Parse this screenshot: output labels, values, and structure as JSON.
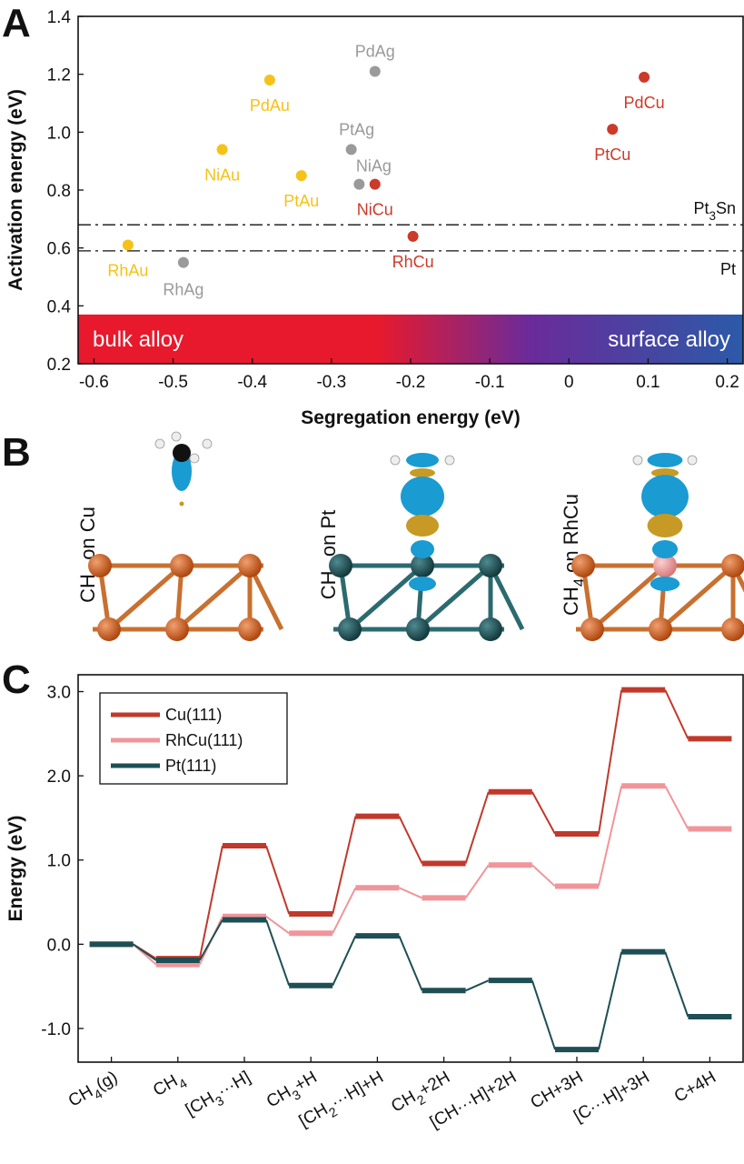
{
  "panels": {
    "a": "A",
    "b": "B",
    "c": "C"
  },
  "chart_data": [
    {
      "type": "scatter",
      "xlabel": "Segregation energy (eV)",
      "ylabel": "Activation energy (eV)",
      "xlim": [
        -0.62,
        0.22
      ],
      "ylim": [
        0.2,
        1.4
      ],
      "xticks": [
        -0.6,
        -0.5,
        -0.4,
        -0.3,
        -0.2,
        -0.1,
        0,
        0.1,
        0.2
      ],
      "xtick_labels": [
        "-0.6",
        "-0.5",
        "-0.4",
        "-0.3",
        "-0.2",
        "-0.1",
        "0",
        "0.1",
        "0.2"
      ],
      "yticks": [
        0.2,
        0.4,
        0.6,
        0.8,
        1.0,
        1.2,
        1.4
      ],
      "ytick_labels": [
        "0.2",
        "0.4",
        "0.6",
        "0.8",
        "1.0",
        "1.2",
        "1.4"
      ],
      "band": {
        "left_label": "bulk alloy",
        "right_label": "surface alloy",
        "y_range": [
          0.2,
          0.37
        ],
        "colors": [
          "#e8192c",
          "#6a2b9a",
          "#2b5aa8"
        ]
      },
      "reference_lines": [
        {
          "label_main": "Pt",
          "label_sub": "3",
          "label_tail": "Sn",
          "y": 0.68
        },
        {
          "label_main": "Pt",
          "label_sub": "",
          "label_tail": "",
          "y": 0.59
        }
      ],
      "series": [
        {
          "group": "Au",
          "color": "#f5c218",
          "points": [
            {
              "label": "PdAu",
              "x": -0.378,
              "y": 1.18
            },
            {
              "label": "NiAu",
              "x": -0.438,
              "y": 0.94
            },
            {
              "label": "PtAu",
              "x": -0.338,
              "y": 0.85
            },
            {
              "label": "RhAu",
              "x": -0.557,
              "y": 0.61
            }
          ]
        },
        {
          "group": "Ag",
          "color": "#9a9a9a",
          "points": [
            {
              "label": "PdAg",
              "x": -0.245,
              "y": 1.21
            },
            {
              "label": "PtAg",
              "x": -0.275,
              "y": 0.94
            },
            {
              "label": "NiAg",
              "x": -0.265,
              "y": 0.82
            },
            {
              "label": "RhAg",
              "x": -0.487,
              "y": 0.55
            }
          ]
        },
        {
          "group": "Cu",
          "color": "#cc3a2a",
          "points": [
            {
              "label": "PdCu",
              "x": 0.095,
              "y": 1.19
            },
            {
              "label": "PtCu",
              "x": 0.055,
              "y": 1.01
            },
            {
              "label": "NiCu",
              "x": -0.245,
              "y": 0.82
            },
            {
              "label": "RhCu",
              "x": -0.197,
              "y": 0.64
            }
          ]
        }
      ]
    },
    {
      "type": "line",
      "ylabel": "Energy (eV)",
      "ylim": [
        -1.4,
        3.2
      ],
      "yticks": [
        -1.0,
        0.0,
        1.0,
        2.0,
        3.0
      ],
      "ytick_labels": [
        "-1.0",
        "0.0",
        "1.0",
        "2.0",
        "3.0"
      ],
      "categories": [
        {
          "main": "CH",
          "sub": "4",
          "tail": "(g)"
        },
        {
          "main": "CH",
          "sub": "4",
          "tail": ""
        },
        {
          "main": "[CH",
          "sub": "3",
          "tail": "···H]"
        },
        {
          "main": "CH",
          "sub": "3",
          "tail": "+H"
        },
        {
          "main": "[CH",
          "sub": "2",
          "tail": "···H]+H"
        },
        {
          "main": "CH",
          "sub": "2",
          "tail": "+2H"
        },
        {
          "main": "[CH···H]+2H",
          "sub": "",
          "tail": ""
        },
        {
          "main": "CH+3H",
          "sub": "",
          "tail": ""
        },
        {
          "main": "[C···H]+3H",
          "sub": "",
          "tail": ""
        },
        {
          "main": "C+4H",
          "sub": "",
          "tail": ""
        }
      ],
      "series": [
        {
          "name": "Cu(111)",
          "color": "#c0392b",
          "values": [
            0.0,
            -0.17,
            1.17,
            0.36,
            1.52,
            0.96,
            1.81,
            1.31,
            3.02,
            2.44
          ]
        },
        {
          "name": "RhCu(111)",
          "color": "#f0959a",
          "values": [
            0.0,
            -0.24,
            0.33,
            0.13,
            0.67,
            0.55,
            0.94,
            0.69,
            1.88,
            1.37
          ]
        },
        {
          "name": "Pt(111)",
          "color": "#1d4f54",
          "values": [
            0.0,
            -0.19,
            0.29,
            -0.49,
            0.1,
            -0.55,
            -0.43,
            -1.25,
            -0.09,
            -0.86
          ]
        }
      ]
    }
  ],
  "panel_b": {
    "molecule": {
      "main": "CH",
      "sub": "4"
    },
    "tiles": [
      {
        "suffix": " on Cu",
        "surface": "#c85d22",
        "bond": "#c87030"
      },
      {
        "suffix": " on Pt",
        "surface": "#1f4a4f",
        "bond": "#2b6a70"
      },
      {
        "suffix": " on RhCu",
        "surface": "#c85d22",
        "bond": "#c87030"
      }
    ],
    "colors": {
      "lobe_blue": "#1a9bd1",
      "lobe_gold": "#c79a25",
      "carbon": "#111111",
      "hydrogen": "#eeeeee",
      "rh_atom": "#e69a9a"
    }
  }
}
